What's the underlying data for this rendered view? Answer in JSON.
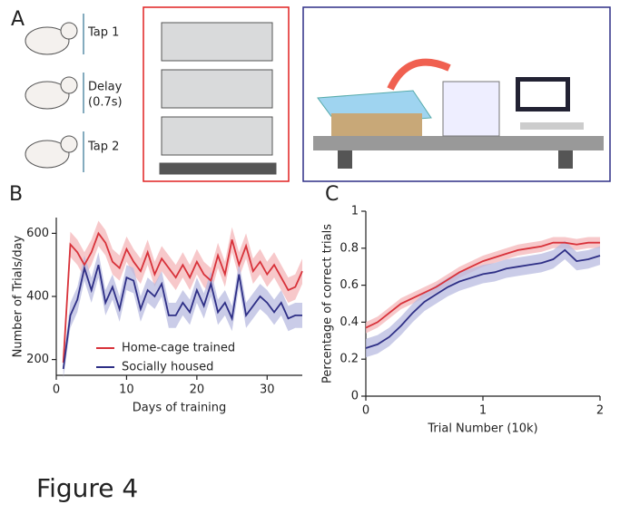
{
  "panel_a": {
    "label": "A",
    "steps": [
      "Tap 1",
      "Delay",
      "(0.7s)",
      "Tap 2"
    ]
  },
  "figure_label": "Figure 4",
  "chart_data": [
    {
      "type": "line",
      "panel": "B",
      "xlabel": "Days of training",
      "ylabel": "Number of Trials/day",
      "x": [
        1,
        2,
        3,
        4,
        5,
        6,
        7,
        8,
        9,
        10,
        11,
        12,
        13,
        14,
        15,
        16,
        17,
        18,
        19,
        20,
        21,
        22,
        23,
        24,
        25,
        26,
        27,
        28,
        29,
        30,
        31,
        32,
        33,
        34,
        35
      ],
      "xlim": [
        0,
        35
      ],
      "xticks": [
        0,
        10,
        20,
        30
      ],
      "ylim": [
        150,
        650
      ],
      "yticks": [
        200,
        400,
        600
      ],
      "legend": "lower left",
      "series": [
        {
          "name": "Home-cage trained",
          "color": "#d8323a",
          "band_color": "#f4b5b8",
          "values": [
            190,
            565,
            540,
            500,
            540,
            600,
            570,
            510,
            490,
            550,
            510,
            480,
            540,
            470,
            520,
            490,
            460,
            500,
            460,
            510,
            470,
            450,
            530,
            470,
            580,
            500,
            560,
            480,
            510,
            470,
            500,
            460,
            420,
            430,
            480
          ],
          "error": [
            30,
            40,
            40,
            40,
            40,
            40,
            40,
            40,
            40,
            40,
            40,
            40,
            40,
            40,
            40,
            40,
            40,
            40,
            40,
            40,
            40,
            40,
            40,
            40,
            40,
            40,
            40,
            40,
            40,
            40,
            40,
            40,
            40,
            40,
            40
          ]
        },
        {
          "name": "Socially housed",
          "color": "#2e2f86",
          "band_color": "#b8bbe0",
          "values": [
            170,
            340,
            390,
            490,
            420,
            500,
            380,
            430,
            360,
            460,
            450,
            360,
            420,
            400,
            440,
            340,
            340,
            380,
            350,
            420,
            370,
            440,
            350,
            380,
            330,
            470,
            340,
            370,
            400,
            380,
            350,
            380,
            330,
            340,
            340
          ],
          "error": [
            30,
            40,
            40,
            40,
            40,
            40,
            40,
            40,
            40,
            40,
            40,
            40,
            40,
            40,
            40,
            40,
            40,
            40,
            40,
            40,
            40,
            40,
            40,
            40,
            40,
            40,
            40,
            40,
            40,
            40,
            40,
            40,
            40,
            40,
            40
          ]
        }
      ]
    },
    {
      "type": "line",
      "panel": "C",
      "xlabel": "Trial Number (10k)",
      "ylabel": "Percentage of correct trials",
      "x": [
        0,
        0.1,
        0.2,
        0.3,
        0.4,
        0.5,
        0.6,
        0.7,
        0.8,
        0.9,
        1,
        1.1,
        1.2,
        1.3,
        1.4,
        1.5,
        1.6,
        1.7,
        1.8,
        1.9,
        2
      ],
      "xlim": [
        0,
        2
      ],
      "xticks": [
        0,
        1,
        2
      ],
      "ylim": [
        0,
        1
      ],
      "yticks": [
        0,
        0.2,
        0.4,
        0.6,
        0.8,
        1
      ],
      "series": [
        {
          "color": "#d8323a",
          "band_color": "#f4b5b8",
          "values": [
            0.37,
            0.4,
            0.45,
            0.5,
            0.53,
            0.56,
            0.59,
            0.63,
            0.67,
            0.7,
            0.73,
            0.75,
            0.77,
            0.79,
            0.8,
            0.81,
            0.83,
            0.83,
            0.82,
            0.83,
            0.83
          ],
          "error": [
            0.03,
            0.03,
            0.03,
            0.03,
            0.03,
            0.03,
            0.03,
            0.03,
            0.03,
            0.03,
            0.03,
            0.03,
            0.03,
            0.03,
            0.03,
            0.03,
            0.03,
            0.03,
            0.03,
            0.03,
            0.03
          ]
        },
        {
          "color": "#2e2f86",
          "band_color": "#b8bbe0",
          "values": [
            0.26,
            0.28,
            0.32,
            0.38,
            0.45,
            0.51,
            0.55,
            0.59,
            0.62,
            0.64,
            0.66,
            0.67,
            0.69,
            0.7,
            0.71,
            0.72,
            0.74,
            0.79,
            0.73,
            0.74,
            0.76
          ],
          "error": [
            0.05,
            0.05,
            0.05,
            0.05,
            0.05,
            0.05,
            0.05,
            0.05,
            0.05,
            0.05,
            0.05,
            0.05,
            0.05,
            0.05,
            0.05,
            0.05,
            0.05,
            0.05,
            0.05,
            0.05,
            0.05
          ]
        }
      ]
    }
  ]
}
